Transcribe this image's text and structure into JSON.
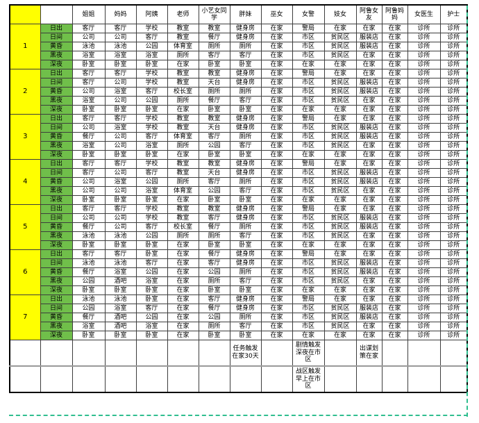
{
  "table": {
    "corner_label": "",
    "blank_header": "",
    "headers": [
      "姐姐",
      "妈妈",
      "阿姨",
      "老师",
      "小艺女同学",
      "胖妹",
      "巫女",
      "女警",
      "妓女",
      "阿鲁女友",
      "阿鲁妈妈",
      "女医生",
      "护士"
    ],
    "time_labels": [
      "日出",
      "日间",
      "黄昏",
      "黑夜",
      "深夜"
    ],
    "days": [
      {
        "number": "1",
        "rows": [
          [
            "客厅",
            "客厅",
            "学校",
            "教室",
            "教室",
            "健身房",
            "在家",
            "警局",
            "在家",
            "在家",
            "在家",
            "诊所",
            "诊所"
          ],
          [
            "公司",
            "公司",
            "客厅",
            "教室",
            "餐厅",
            "健身房",
            "在家",
            "市区",
            "贫民区",
            "服装店",
            "在家",
            "诊所",
            "诊所"
          ],
          [
            "泳池",
            "泳池",
            "公园",
            "体育室",
            "厕所",
            "厕所",
            "在家",
            "市区",
            "贫民区",
            "服装店",
            "在家",
            "诊所",
            "诊所"
          ],
          [
            "浴室",
            "浴室",
            "浴室",
            "厕所",
            "客厅",
            "客厅",
            "在家",
            "市区",
            "贫民区",
            "在家",
            "在家",
            "诊所",
            "诊所"
          ],
          [
            "卧室",
            "卧室",
            "卧室",
            "在家",
            "卧室",
            "卧室",
            "在家",
            "在家",
            "在家",
            "在家",
            "在家",
            "诊所",
            "诊所"
          ]
        ]
      },
      {
        "number": "2",
        "rows": [
          [
            "客厅",
            "客厅",
            "学校",
            "教室",
            "教室",
            "健身房",
            "在家",
            "警局",
            "在家",
            "在家",
            "在家",
            "诊所",
            "诊所"
          ],
          [
            "客厅",
            "公司",
            "学校",
            "教室",
            "天台",
            "健身房",
            "在家",
            "市区",
            "贫民区",
            "服装店",
            "在家",
            "诊所",
            "诊所"
          ],
          [
            "公司",
            "浴室",
            "客厅",
            "校长室",
            "厕所",
            "厕所",
            "在家",
            "市区",
            "贫民区",
            "服装店",
            "在家",
            "诊所",
            "诊所"
          ],
          [
            "浴室",
            "公司",
            "公园",
            "厕所",
            "餐厅",
            "客厅",
            "在家",
            "市区",
            "贫民区",
            "在家",
            "在家",
            "诊所",
            "诊所"
          ],
          [
            "卧室",
            "卧室",
            "卧室",
            "在家",
            "卧室",
            "卧室",
            "在家",
            "在家",
            "在家",
            "在家",
            "在家",
            "诊所",
            "诊所"
          ]
        ]
      },
      {
        "number": "3",
        "rows": [
          [
            "客厅",
            "客厅",
            "学校",
            "教室",
            "教室",
            "健身房",
            "在家",
            "警局",
            "在家",
            "在家",
            "在家",
            "诊所",
            "诊所"
          ],
          [
            "公司",
            "浴室",
            "学校",
            "教室",
            "天台",
            "健身房",
            "在家",
            "市区",
            "贫民区",
            "服装店",
            "在家",
            "诊所",
            "诊所"
          ],
          [
            "餐厅",
            "公司",
            "客厅",
            "体育室",
            "客厅",
            "厕所",
            "在家",
            "市区",
            "贫民区",
            "服装店",
            "在家",
            "诊所",
            "诊所"
          ],
          [
            "浴室",
            "公司",
            "浴室",
            "厕所",
            "公园",
            "客厅",
            "在家",
            "市区",
            "贫民区",
            "在家",
            "在家",
            "诊所",
            "诊所"
          ],
          [
            "卧室",
            "卧室",
            "卧室",
            "在家",
            "卧室",
            "卧室",
            "在家",
            "在家",
            "在家",
            "在家",
            "在家",
            "诊所",
            "诊所"
          ]
        ]
      },
      {
        "number": "4",
        "rows": [
          [
            "客厅",
            "客厅",
            "学校",
            "教室",
            "教室",
            "健身房",
            "在家",
            "警局",
            "在家",
            "在家",
            "在家",
            "诊所",
            "诊所"
          ],
          [
            "客厅",
            "公司",
            "客厅",
            "教室",
            "天台",
            "健身房",
            "在家",
            "市区",
            "贫民区",
            "服装店",
            "在家",
            "诊所",
            "诊所"
          ],
          [
            "公司",
            "浴室",
            "公园",
            "厕所",
            "客厅",
            "厕所",
            "在家",
            "市区",
            "贫民区",
            "服装店",
            "在家",
            "诊所",
            "诊所"
          ],
          [
            "公司",
            "公司",
            "浴室",
            "体育室",
            "公园",
            "客厅",
            "在家",
            "市区",
            "贫民区",
            "在家",
            "在家",
            "诊所",
            "诊所"
          ],
          [
            "卧室",
            "卧室",
            "卧室",
            "在家",
            "卧室",
            "卧室",
            "在家",
            "在家",
            "在家",
            "在家",
            "在家",
            "诊所",
            "诊所"
          ]
        ]
      },
      {
        "number": "5",
        "rows": [
          [
            "客厅",
            "客厅",
            "学校",
            "教室",
            "教室",
            "健身房",
            "在家",
            "警局",
            "在家",
            "在家",
            "在家",
            "诊所",
            "诊所"
          ],
          [
            "公司",
            "公司",
            "学校",
            "教室",
            "客厅",
            "健身房",
            "在家",
            "市区",
            "贫民区",
            "服装店",
            "在家",
            "诊所",
            "诊所"
          ],
          [
            "餐厅",
            "公司",
            "客厅",
            "校长室",
            "餐厅",
            "厕所",
            "在家",
            "市区",
            "贫民区",
            "服装店",
            "在家",
            "诊所",
            "诊所"
          ],
          [
            "泳池",
            "泳池",
            "公园",
            "厕所",
            "厕所",
            "客厅",
            "在家",
            "市区",
            "贫民区",
            "在家",
            "在家",
            "诊所",
            "诊所"
          ],
          [
            "卧室",
            "卧室",
            "卧室",
            "在家",
            "卧室",
            "卧室",
            "在家",
            "在家",
            "在家",
            "在家",
            "在家",
            "诊所",
            "诊所"
          ]
        ]
      },
      {
        "number": "6",
        "rows": [
          [
            "客厅",
            "客厅",
            "卧室",
            "在家",
            "餐厅",
            "健身房",
            "在家",
            "警局",
            "在家",
            "在家",
            "在家",
            "诊所",
            "诊所"
          ],
          [
            "泳池",
            "泳池",
            "客厅",
            "在家",
            "客厅",
            "健身房",
            "在家",
            "市区",
            "贫民区",
            "服装店",
            "在家",
            "诊所",
            "诊所"
          ],
          [
            "餐厅",
            "浴室",
            "公园",
            "在家",
            "公园",
            "厕所",
            "在家",
            "市区",
            "贫民区",
            "服装店",
            "在家",
            "诊所",
            "诊所"
          ],
          [
            "公园",
            "酒吧",
            "浴室",
            "在家",
            "厕所",
            "客厅",
            "在家",
            "市区",
            "贫民区",
            "在家",
            "在家",
            "诊所",
            "诊所"
          ],
          [
            "卧室",
            "卧室",
            "卧室",
            "在家",
            "卧室",
            "卧室",
            "在家",
            "在家",
            "在家",
            "在家",
            "在家",
            "诊所",
            "诊所"
          ]
        ]
      },
      {
        "number": "7",
        "rows": [
          [
            "泳池",
            "泳池",
            "卧室",
            "在家",
            "客厅",
            "健身房",
            "在家",
            "警局",
            "在家",
            "在家",
            "在家",
            "诊所",
            "诊所"
          ],
          [
            "公园",
            "浴室",
            "客厅",
            "在家",
            "餐厅",
            "健身房",
            "在家",
            "市区",
            "贫民区",
            "服装店",
            "在家",
            "诊所",
            "诊所"
          ],
          [
            "餐厅",
            "酒吧",
            "公园",
            "在家",
            "公园",
            "厕所",
            "在家",
            "市区",
            "贫民区",
            "服装店",
            "在家",
            "诊所",
            "诊所"
          ],
          [
            "浴室",
            "酒吧",
            "浴室",
            "在家",
            "厕所",
            "客厅",
            "在家",
            "市区",
            "贫民区",
            "在家",
            "在家",
            "诊所",
            "诊所"
          ],
          [
            "卧室",
            "卧室",
            "卧室",
            "在家",
            "卧室",
            "卧室",
            "在家",
            "在家",
            "在家",
            "在家",
            "在家",
            "诊所",
            "诊所"
          ]
        ]
      }
    ],
    "notes": [
      [
        "",
        "",
        "",
        "",
        "",
        "任务触发在家30天",
        "",
        "剧情触发深夜在市区",
        "",
        "出谋划策在家",
        "",
        "",
        ""
      ],
      [
        "",
        "",
        "",
        "",
        "",
        "",
        "",
        "战区触发早上在市区",
        "",
        "",
        "",
        "",
        ""
      ]
    ],
    "colors": {
      "day_column": "#ffff00",
      "time_column": "#70bf4a",
      "page_break_dash": "#2fbe8f",
      "grid_line": "#3c3c3c"
    }
  }
}
